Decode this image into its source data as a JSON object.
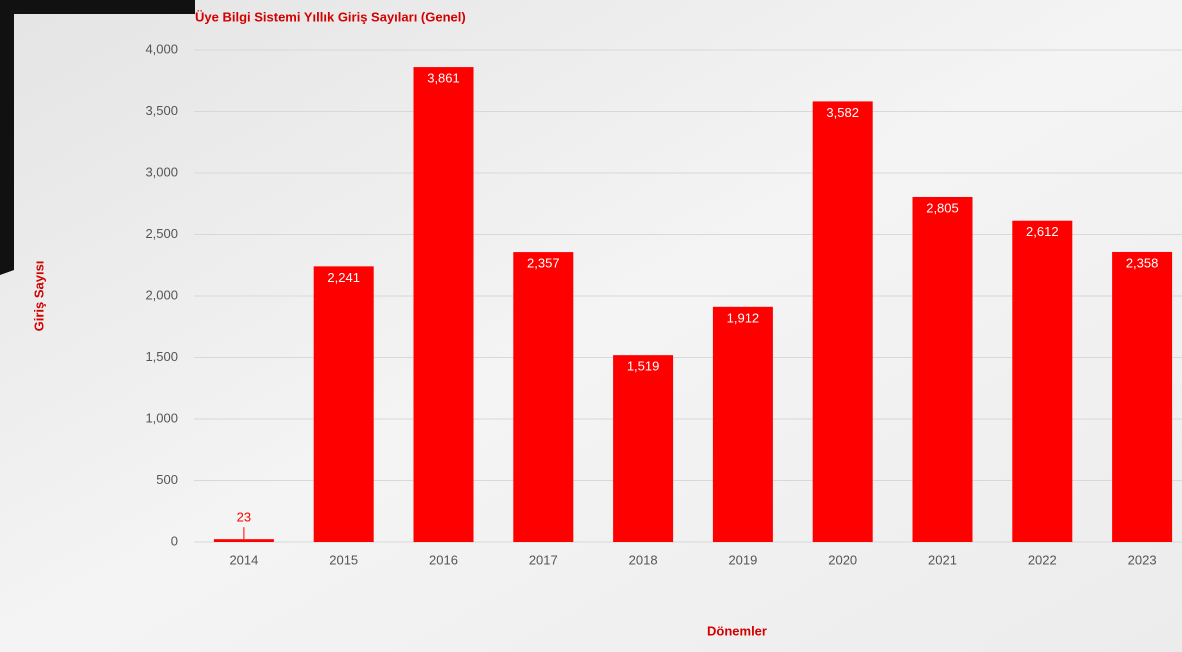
{
  "chart_data": {
    "type": "bar",
    "title": "Üye Bilgi Sistemi Yıllık Giriş Sayıları (Genel)",
    "x_label": "Dönemler",
    "y_label": "Giriş Sayısı",
    "categories": [
      "2014",
      "2015",
      "2016",
      "2017",
      "2018",
      "2019",
      "2020",
      "2021",
      "2022",
      "2023"
    ],
    "values": [
      23,
      2241,
      3861,
      2357,
      1519,
      1912,
      3582,
      2805,
      2612,
      2358
    ],
    "value_labels": [
      "23",
      "2,241",
      "3,861",
      "2,357",
      "1,519",
      "1,912",
      "3,582",
      "2,805",
      "2,612",
      "2,358"
    ],
    "color": "#ff0000",
    "ylim": [
      0,
      4000
    ],
    "yticks": [
      0,
      500,
      {
        "value": 1000,
        "label": "1,000"
      },
      {
        "value": 1500,
        "label": "1,500"
      },
      {
        "value": 2000,
        "label": "2,000"
      },
      {
        "value": 2500,
        "label": "2,500"
      },
      {
        "value": 3000,
        "label": "3,000"
      },
      {
        "value": 3500,
        "label": "3,500"
      },
      {
        "value": 4000,
        "label": "4,000"
      }
    ],
    "grid": true
  }
}
